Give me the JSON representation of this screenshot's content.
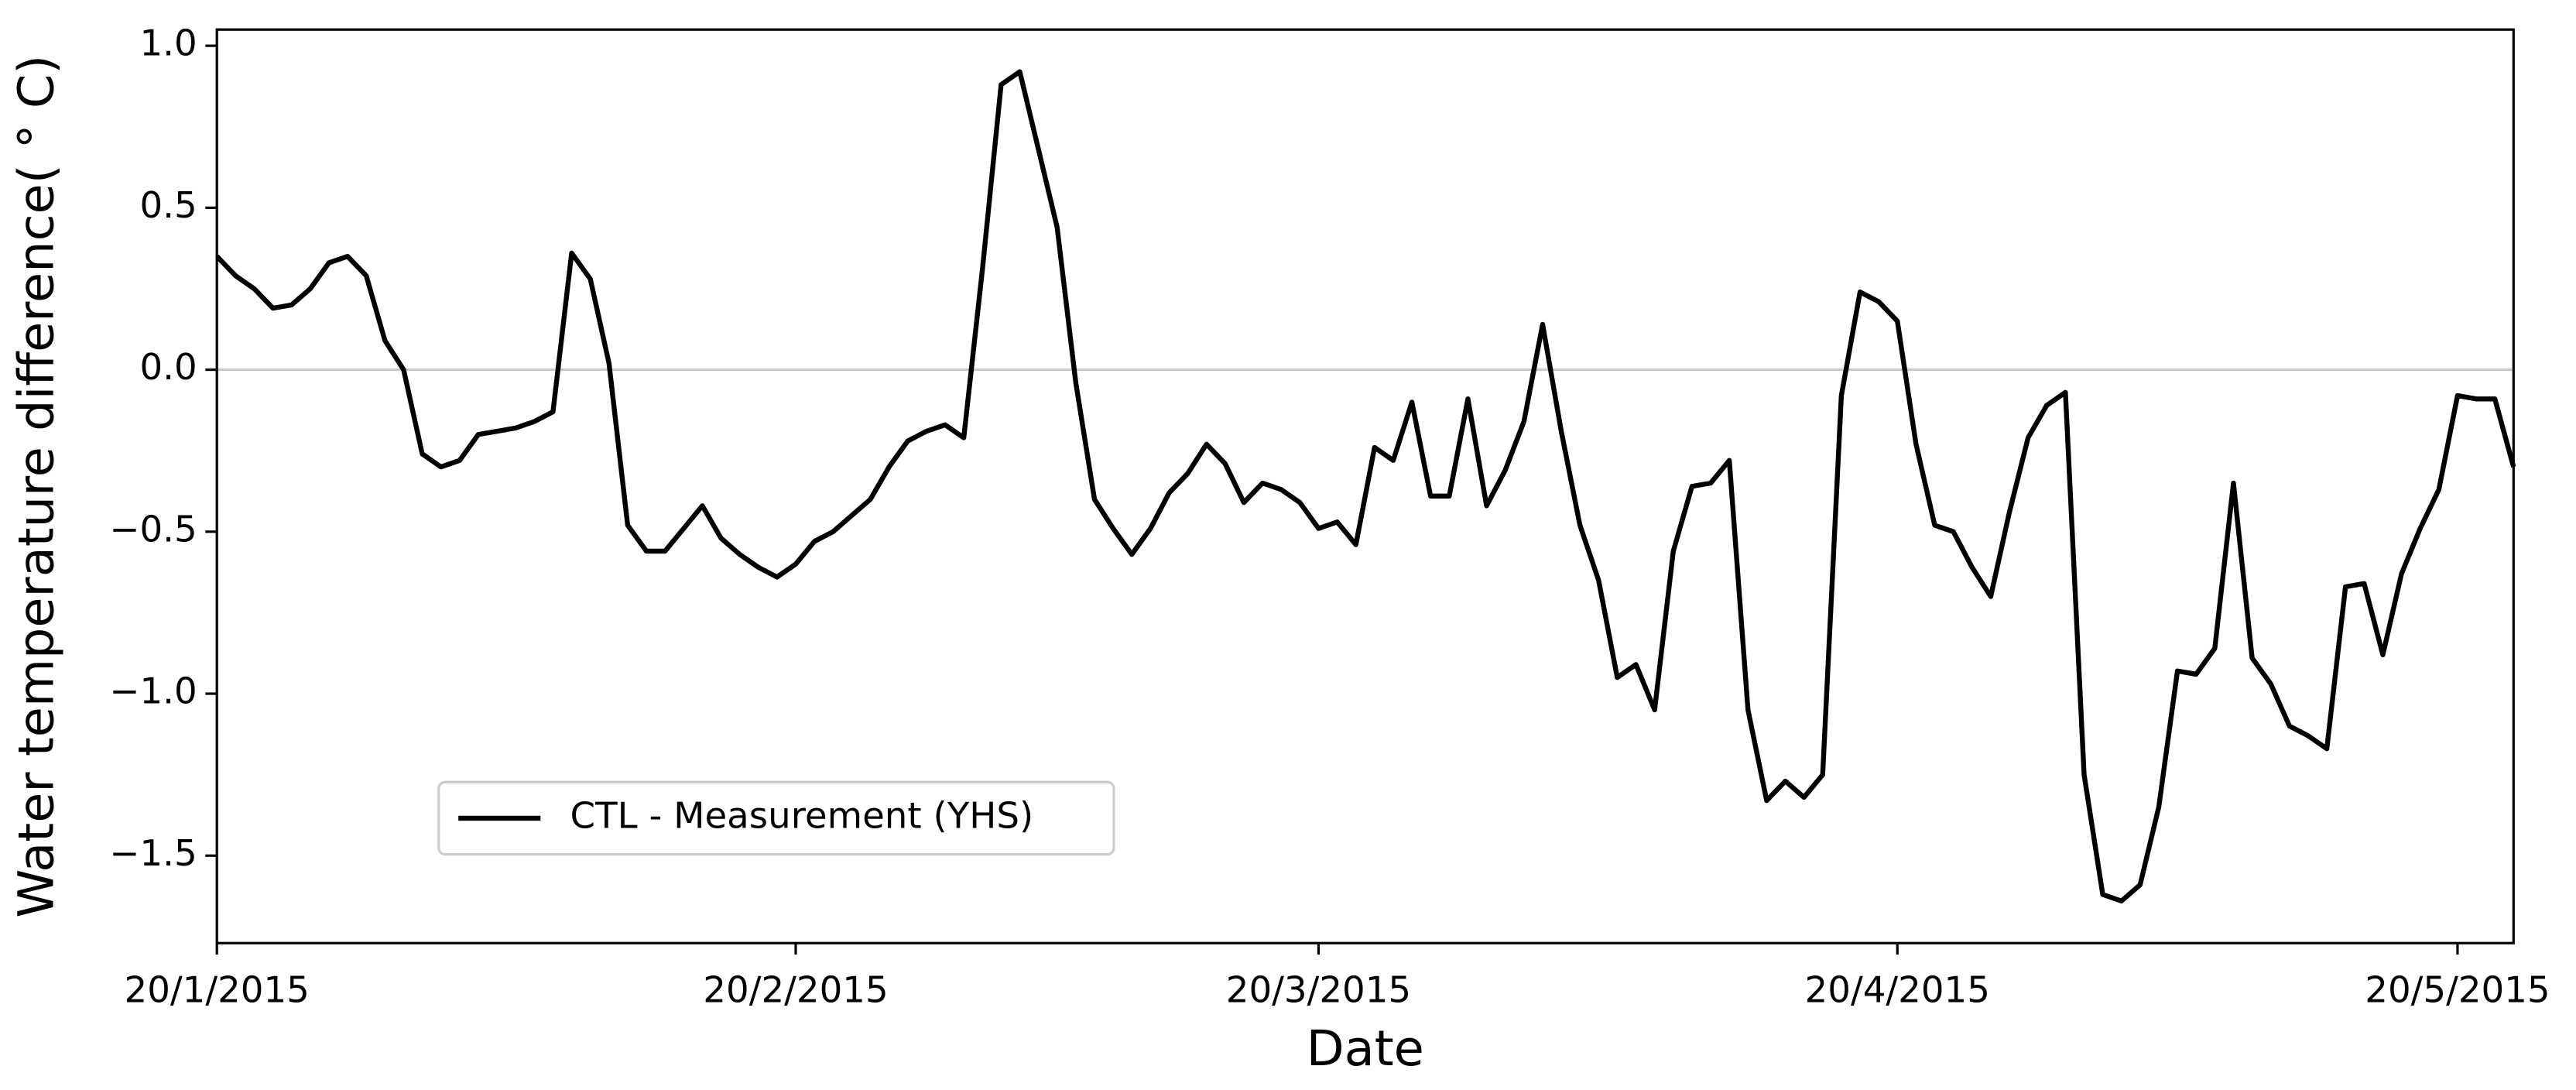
{
  "chart_data": {
    "type": "line",
    "xlabel": "Date",
    "ylabel": "Water temperature difference( ° C)",
    "x": [
      "2015-01-20",
      "2015-01-21",
      "2015-01-22",
      "2015-01-23",
      "2015-01-24",
      "2015-01-25",
      "2015-01-26",
      "2015-01-27",
      "2015-01-28",
      "2015-01-29",
      "2015-01-30",
      "2015-01-31",
      "2015-02-01",
      "2015-02-02",
      "2015-02-03",
      "2015-02-04",
      "2015-02-05",
      "2015-02-06",
      "2015-02-07",
      "2015-02-08",
      "2015-02-09",
      "2015-02-10",
      "2015-02-11",
      "2015-02-12",
      "2015-02-13",
      "2015-02-14",
      "2015-02-15",
      "2015-02-16",
      "2015-02-17",
      "2015-02-18",
      "2015-02-19",
      "2015-02-20",
      "2015-02-21",
      "2015-02-22",
      "2015-02-23",
      "2015-02-24",
      "2015-02-25",
      "2015-02-26",
      "2015-02-27",
      "2015-02-28",
      "2015-03-01",
      "2015-03-02",
      "2015-03-03",
      "2015-03-04",
      "2015-03-05",
      "2015-03-06",
      "2015-03-07",
      "2015-03-08",
      "2015-03-09",
      "2015-03-10",
      "2015-03-11",
      "2015-03-12",
      "2015-03-13",
      "2015-03-14",
      "2015-03-15",
      "2015-03-16",
      "2015-03-17",
      "2015-03-18",
      "2015-03-19",
      "2015-03-20",
      "2015-03-21",
      "2015-03-22",
      "2015-03-23",
      "2015-03-24",
      "2015-03-25",
      "2015-03-26",
      "2015-03-27",
      "2015-03-28",
      "2015-03-29",
      "2015-03-30",
      "2015-03-31",
      "2015-04-01",
      "2015-04-02",
      "2015-04-03",
      "2015-04-04",
      "2015-04-05",
      "2015-04-06",
      "2015-04-07",
      "2015-04-08",
      "2015-04-09",
      "2015-04-10",
      "2015-04-11",
      "2015-04-12",
      "2015-04-13",
      "2015-04-14",
      "2015-04-15",
      "2015-04-16",
      "2015-04-17",
      "2015-04-18",
      "2015-04-19",
      "2015-04-20",
      "2015-04-21",
      "2015-04-22",
      "2015-04-23",
      "2015-04-24",
      "2015-04-25",
      "2015-04-26",
      "2015-04-27",
      "2015-04-28",
      "2015-04-29",
      "2015-04-30",
      "2015-05-01",
      "2015-05-02",
      "2015-05-03",
      "2015-05-04",
      "2015-05-05",
      "2015-05-06",
      "2015-05-07",
      "2015-05-08",
      "2015-05-09",
      "2015-05-10",
      "2015-05-11",
      "2015-05-12",
      "2015-05-13",
      "2015-05-14",
      "2015-05-15",
      "2015-05-16",
      "2015-05-17",
      "2015-05-18",
      "2015-05-19",
      "2015-05-20",
      "2015-05-21",
      "2015-05-22",
      "2015-05-23"
    ],
    "series": [
      {
        "name": "CTL - Measurement (YHS)",
        "color": "#000000",
        "values": [
          0.35,
          0.29,
          0.25,
          0.19,
          0.2,
          0.25,
          0.33,
          0.35,
          0.29,
          0.09,
          0.0,
          -0.26,
          -0.3,
          -0.28,
          -0.2,
          -0.19,
          -0.18,
          -0.16,
          -0.13,
          0.36,
          0.28,
          0.02,
          -0.48,
          -0.56,
          -0.56,
          -0.49,
          -0.42,
          -0.52,
          -0.57,
          -0.61,
          -0.64,
          -0.6,
          -0.53,
          -0.5,
          -0.45,
          -0.4,
          -0.3,
          -0.22,
          -0.19,
          -0.17,
          -0.21,
          0.31,
          0.88,
          0.92,
          0.68,
          0.44,
          -0.04,
          -0.4,
          -0.49,
          -0.57,
          -0.49,
          -0.38,
          -0.32,
          -0.23,
          -0.29,
          -0.41,
          -0.35,
          -0.37,
          -0.41,
          -0.49,
          -0.47,
          -0.54,
          -0.24,
          -0.28,
          -0.1,
          -0.39,
          -0.39,
          -0.09,
          -0.42,
          -0.31,
          -0.16,
          0.14,
          -0.19,
          -0.48,
          -0.65,
          -0.95,
          -0.91,
          -1.05,
          -0.56,
          -0.36,
          -0.35,
          -0.28,
          -1.05,
          -1.33,
          -1.27,
          -1.32,
          -1.25,
          -0.08,
          0.24,
          0.21,
          0.15,
          -0.23,
          -0.48,
          -0.5,
          -0.61,
          -0.7,
          -0.44,
          -0.21,
          -0.11,
          -0.07,
          -1.25,
          -1.62,
          -1.64,
          -1.59,
          -1.35,
          -0.93,
          -0.94,
          -0.86,
          -0.35,
          -0.89,
          -0.97,
          -1.1,
          -1.13,
          -1.17,
          -0.67,
          -0.66,
          -0.88,
          -0.63,
          -0.49,
          -0.37,
          -0.08,
          -0.09,
          -0.09,
          -0.3
        ]
      }
    ],
    "xlim": [
      "2015-01-20",
      "2015-05-23"
    ],
    "xticks": [
      {
        "value": "2015-01-20",
        "label": "20/1/2015"
      },
      {
        "value": "2015-02-20",
        "label": "20/2/2015"
      },
      {
        "value": "2015-03-20",
        "label": "20/3/2015"
      },
      {
        "value": "2015-04-20",
        "label": "20/4/2015"
      },
      {
        "value": "2015-05-20",
        "label": "20/5/2015"
      }
    ],
    "ylim": [
      -1.77,
      1.05
    ],
    "yticks": [
      {
        "value": -1.5,
        "label": "−1.5"
      },
      {
        "value": -1.0,
        "label": "−1.0"
      },
      {
        "value": -0.5,
        "label": "−0.5"
      },
      {
        "value": 0,
        "label": "0.0"
      },
      {
        "value": 0.5,
        "label": "0.5"
      },
      {
        "value": 1.0,
        "label": "1.0"
      }
    ],
    "hline": 0,
    "legend": "lower left"
  }
}
